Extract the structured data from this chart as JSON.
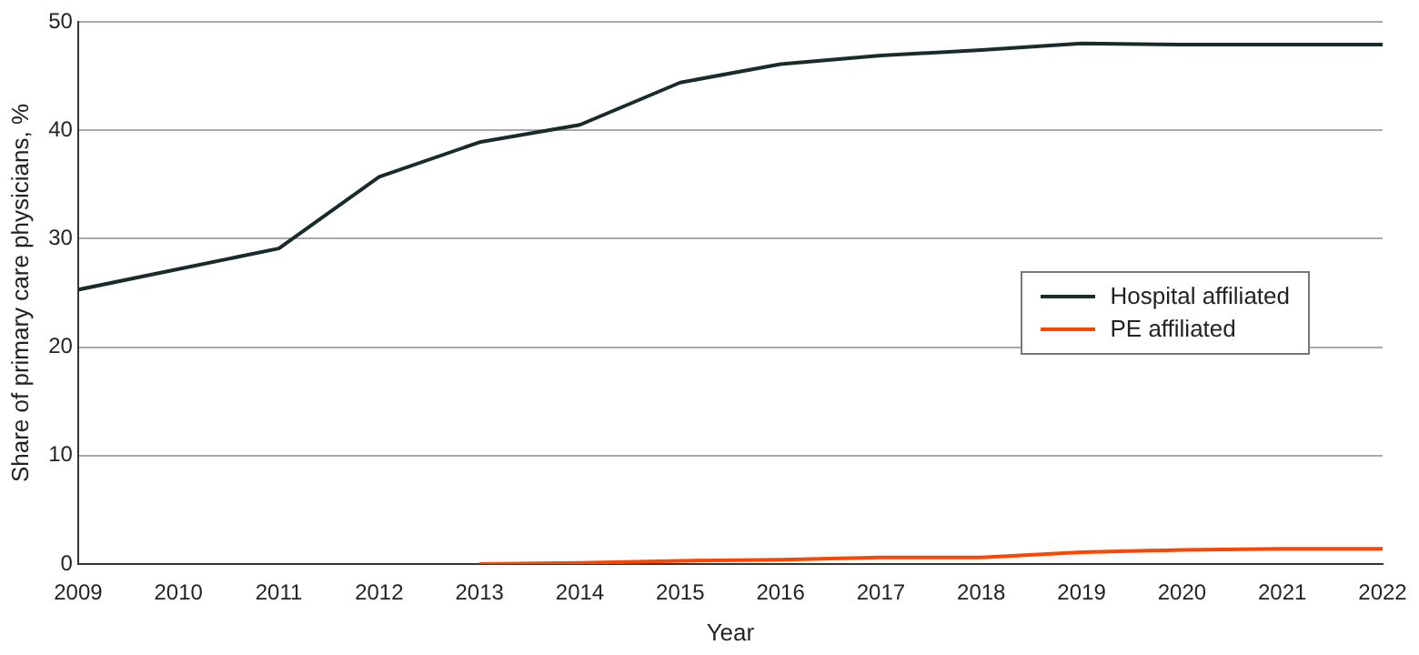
{
  "chart_data": {
    "type": "line",
    "xlabel": "Year",
    "ylabel": "Share of primary care physicians, %",
    "x": [
      2009,
      2010,
      2011,
      2012,
      2013,
      2014,
      2015,
      2016,
      2017,
      2018,
      2019,
      2020,
      2021,
      2022
    ],
    "series": [
      {
        "name": "Hospital affiliated",
        "color": "#1a2b2b",
        "values": [
          25.3,
          27.2,
          29.1,
          35.7,
          38.9,
          40.5,
          44.4,
          46.1,
          46.9,
          47.4,
          48.0,
          47.9,
          47.9,
          47.9
        ]
      },
      {
        "name": "PE affiliated",
        "color": "#ff4500",
        "values": [
          null,
          null,
          null,
          null,
          0,
          0.1,
          0.3,
          0.4,
          0.6,
          0.6,
          1.1,
          1.3,
          1.4,
          1.4
        ]
      }
    ],
    "xlim": [
      2009,
      2022
    ],
    "xticks": [
      2009,
      2010,
      2011,
      2012,
      2013,
      2014,
      2015,
      2016,
      2017,
      2018,
      2019,
      2020,
      2021,
      2022
    ],
    "ylim": [
      0,
      50
    ],
    "yticks": [
      0,
      10,
      20,
      30,
      40,
      50
    ],
    "grid": "y",
    "legend": "right",
    "marker": "none",
    "line_style": "solid"
  }
}
